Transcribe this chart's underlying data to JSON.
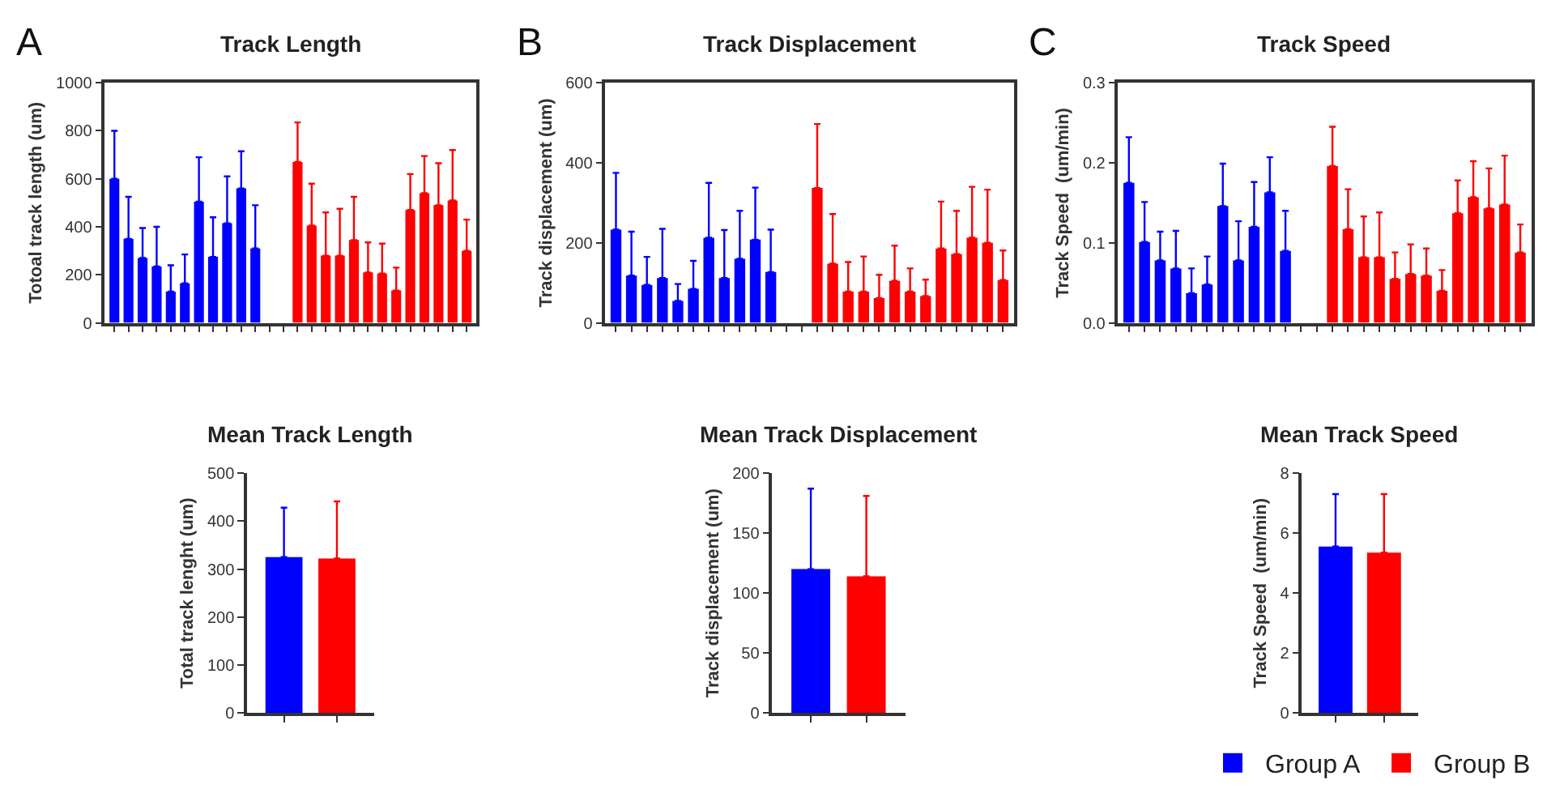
{
  "chart_data": [
    {
      "type": "bar",
      "title": "Track Length",
      "ylabel": "Totoal track length (um)",
      "annotations": [
        "A"
      ],
      "categories": [
        null,
        null,
        null,
        null,
        null,
        null,
        null,
        null,
        null,
        null,
        null,
        null,
        null,
        null,
        null,
        null,
        null,
        null,
        null,
        null,
        null,
        null,
        null,
        null,
        null,
        null
      ],
      "ylim": [
        0,
        1000
      ],
      "yticks": [
        0,
        200,
        400,
        600,
        800,
        1000
      ],
      "tick_labels": "y",
      "legend": false,
      "series": [
        {
          "color": "#0000ff",
          "values": [
            600,
            350,
            270,
            235,
            130,
            165,
            505,
            275,
            415,
            560,
            310,
            null,
            null,
            null,
            null,
            null,
            null,
            null,
            null,
            null,
            null,
            null,
            null,
            null,
            null,
            null
          ],
          "errors": [
            [
              600,
              800
            ],
            [
              350,
              525
            ],
            [
              270,
              395
            ],
            [
              235,
              400
            ],
            [
              130,
              240
            ],
            [
              165,
              285
            ],
            [
              505,
              690
            ],
            [
              275,
              440
            ],
            [
              415,
              610
            ],
            [
              560,
              715
            ],
            [
              310,
              490
            ],
            null,
            null,
            null,
            null,
            null,
            null,
            null,
            null,
            null,
            null,
            null,
            null,
            null,
            null,
            null
          ]
        },
        {
          "color": "#ff0000",
          "values": [
            null,
            null,
            null,
            null,
            null,
            null,
            null,
            null,
            null,
            null,
            null,
            null,
            null,
            670,
            405,
            280,
            280,
            345,
            210,
            205,
            135,
            470,
            540,
            490,
            510,
            300
          ],
          "errors": [
            null,
            null,
            null,
            null,
            null,
            null,
            null,
            null,
            null,
            null,
            null,
            null,
            null,
            [
              670,
              835
            ],
            [
              405,
              580
            ],
            [
              280,
              460
            ],
            [
              280,
              475
            ],
            [
              345,
              525
            ],
            [
              210,
              335
            ],
            [
              205,
              330
            ],
            [
              135,
              230
            ],
            [
              470,
              620
            ],
            [
              540,
              695
            ],
            [
              490,
              665
            ],
            [
              510,
              720
            ],
            [
              300,
              430
            ]
          ]
        }
      ]
    },
    {
      "type": "bar",
      "title": "Track Displacement",
      "ylabel": "Track displacement (um)",
      "annotations": [
        "B"
      ],
      "categories": [
        null,
        null,
        null,
        null,
        null,
        null,
        null,
        null,
        null,
        null,
        null,
        null,
        null,
        null,
        null,
        null,
        null,
        null,
        null,
        null,
        null,
        null,
        null,
        null,
        null,
        null
      ],
      "ylim": [
        0,
        600
      ],
      "yticks": [
        0,
        200,
        400,
        600
      ],
      "tick_labels": "y",
      "legend": false,
      "series": [
        {
          "color": "#0000ff",
          "values": [
            233,
            118,
            95,
            112,
            55,
            85,
            213,
            112,
            160,
            208,
            127,
            null,
            null,
            null,
            null,
            null,
            null,
            null,
            null,
            null,
            null,
            null,
            null,
            null,
            null,
            null
          ],
          "errors": [
            [
              233,
              375
            ],
            [
              118,
              228
            ],
            [
              95,
              165
            ],
            [
              112,
              235
            ],
            [
              55,
              97
            ],
            [
              85,
              155
            ],
            [
              213,
              350
            ],
            [
              112,
              232
            ],
            [
              160,
              280
            ],
            [
              208,
              338
            ],
            [
              127,
              233
            ],
            null,
            null,
            null,
            null,
            null,
            null,
            null,
            null,
            null,
            null,
            null,
            null,
            null,
            null,
            null
          ]
        },
        {
          "color": "#ff0000",
          "values": [
            null,
            null,
            null,
            null,
            null,
            null,
            null,
            null,
            null,
            null,
            null,
            null,
            null,
            337,
            148,
            78,
            78,
            62,
            105,
            78,
            67,
            186,
            172,
            213,
            200,
            107
          ],
          "errors": [
            null,
            null,
            null,
            null,
            null,
            null,
            null,
            null,
            null,
            null,
            null,
            null,
            null,
            [
              337,
              497
            ],
            [
              148,
              272
            ],
            [
              78,
              152
            ],
            [
              78,
              166
            ],
            [
              62,
              120
            ],
            [
              105,
              193
            ],
            [
              78,
              136
            ],
            [
              67,
              108
            ],
            [
              186,
              303
            ],
            [
              172,
              280
            ],
            [
              213,
              340
            ],
            [
              200,
              333
            ],
            [
              107,
              181
            ]
          ]
        }
      ]
    },
    {
      "type": "bar",
      "title": "Track Speed",
      "ylabel": "Track Speed  (um/min)",
      "annotations": [
        "C"
      ],
      "categories": [
        null,
        null,
        null,
        null,
        null,
        null,
        null,
        null,
        null,
        null,
        null,
        null,
        null,
        null,
        null,
        null,
        null,
        null,
        null,
        null,
        null,
        null,
        null,
        null,
        null,
        null
      ],
      "ylim": [
        0,
        0.3
      ],
      "yticks": [
        {
          "value": 0,
          "label": "0.0"
        },
        0.1,
        0.2,
        0.3
      ],
      "tick_labels": "y",
      "legend": false,
      "series": [
        {
          "color": "#0000ff",
          "values": [
            0.175,
            0.101,
            0.078,
            0.068,
            0.037,
            0.048,
            0.146,
            0.078,
            0.12,
            0.163,
            0.09,
            null,
            null,
            null,
            null,
            null,
            null,
            null,
            null,
            null,
            null,
            null,
            null,
            null,
            null,
            null
          ],
          "errors": [
            [
              0.175,
              0.232
            ],
            [
              0.101,
              0.151
            ],
            [
              0.078,
              0.114
            ],
            [
              0.068,
              0.115
            ],
            [
              0.037,
              0.068
            ],
            [
              0.048,
              0.083
            ],
            [
              0.146,
              0.199
            ],
            [
              0.078,
              0.127
            ],
            [
              0.12,
              0.176
            ],
            [
              0.163,
              0.207
            ],
            [
              0.09,
              0.14
            ],
            null,
            null,
            null,
            null,
            null,
            null,
            null,
            null,
            null,
            null,
            null,
            null,
            null,
            null,
            null
          ]
        },
        {
          "color": "#ff0000",
          "values": [
            null,
            null,
            null,
            null,
            null,
            null,
            null,
            null,
            null,
            null,
            null,
            null,
            null,
            0.196,
            0.117,
            0.082,
            0.082,
            0.055,
            0.061,
            0.059,
            0.04,
            0.137,
            0.157,
            0.143,
            0.148,
            0.088
          ],
          "errors": [
            null,
            null,
            null,
            null,
            null,
            null,
            null,
            null,
            null,
            null,
            null,
            null,
            null,
            [
              0.196,
              0.245
            ],
            [
              0.117,
              0.167
            ],
            [
              0.082,
              0.133
            ],
            [
              0.082,
              0.138
            ],
            [
              0.055,
              0.088
            ],
            [
              0.061,
              0.098
            ],
            [
              0.059,
              0.093
            ],
            [
              0.04,
              0.066
            ],
            [
              0.137,
              0.178
            ],
            [
              0.157,
              0.202
            ],
            [
              0.143,
              0.193
            ],
            [
              0.148,
              0.209
            ],
            [
              0.088,
              0.123
            ]
          ]
        }
      ]
    },
    {
      "type": "bar",
      "title": "Mean Track Length",
      "ylabel": "Total track lenght (um)",
      "categories": [
        null,
        null
      ],
      "ylim": [
        0,
        500
      ],
      "yticks": [
        0,
        100,
        200,
        300,
        400,
        500
      ],
      "tick_labels": "y",
      "legend": false,
      "series": [
        {
          "color": "#0000ff",
          "values": [
            325,
            null
          ],
          "errors": [
            [
              325,
              428
            ],
            null
          ]
        },
        {
          "color": "#ff0000",
          "values": [
            null,
            322
          ],
          "errors": [
            null,
            [
              322,
              441
            ]
          ]
        }
      ]
    },
    {
      "type": "bar",
      "title": "Mean Track Displacement",
      "ylabel": "Track displacement (um)",
      "categories": [
        null,
        null
      ],
      "ylim": [
        0,
        200
      ],
      "yticks": [
        0,
        50,
        100,
        150,
        200
      ],
      "tick_labels": "y",
      "legend": false,
      "series": [
        {
          "color": "#0000ff",
          "values": [
            120,
            null
          ],
          "errors": [
            [
              120,
              187
            ],
            null
          ]
        },
        {
          "color": "#ff0000",
          "values": [
            null,
            114
          ],
          "errors": [
            null,
            [
              114,
              181
            ]
          ]
        }
      ]
    },
    {
      "type": "bar",
      "title": "Mean Track Speed",
      "ylabel": "Track Speed  (um/min)",
      "categories": [
        null,
        null
      ],
      "ylim": [
        0,
        8
      ],
      "yticks": [
        0,
        2,
        4,
        6,
        8
      ],
      "tick_labels": "y",
      "legend": "bottom right",
      "series": [
        {
          "name": "Group A",
          "color": "#0000ff",
          "values": [
            5.55,
            null
          ],
          "errors": [
            [
              5.55,
              7.3
            ],
            null
          ]
        },
        {
          "name": "Group B",
          "color": "#ff0000",
          "values": [
            null,
            5.35
          ],
          "errors": [
            null,
            [
              5.35,
              7.3
            ]
          ]
        }
      ]
    }
  ]
}
